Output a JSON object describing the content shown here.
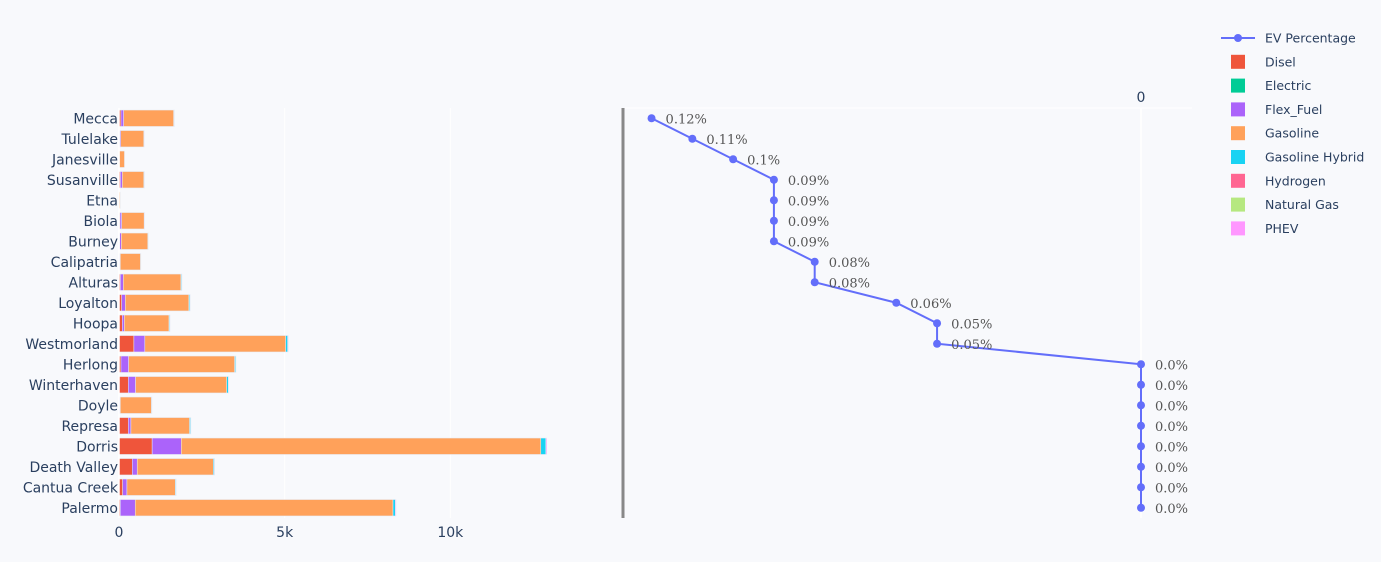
{
  "chart_data": [
    {
      "type": "bar",
      "orientation": "horizontal",
      "barmode": "stack",
      "categories": [
        "Mecca",
        "Tulelake",
        "Janesville",
        "Susanville",
        "Etna",
        "Biola",
        "Burney",
        "Calipatria",
        "Alturas",
        "Loyalton",
        "Hoopa",
        "Westmorland",
        "Herlong",
        "Winterhaven",
        "Doyle",
        "Represa",
        "Dorris",
        "Death Valley",
        "Cantua Creek",
        "Palermo"
      ],
      "series": [
        {
          "name": "Disel",
          "color": "#ef553b",
          "values": [
            60,
            20,
            10,
            40,
            5,
            30,
            20,
            20,
            40,
            80,
            100,
            450,
            60,
            280,
            20,
            280,
            1000,
            400,
            110,
            40
          ]
        },
        {
          "name": "Electric",
          "color": "#00cc96",
          "values": [
            0,
            0,
            0,
            0,
            0,
            0,
            0,
            0,
            0,
            0,
            0,
            0,
            0,
            0,
            0,
            0,
            0,
            0,
            0,
            0
          ]
        },
        {
          "name": "Flex_Fuel",
          "color": "#ab63fa",
          "values": [
            80,
            30,
            5,
            60,
            0,
            50,
            50,
            20,
            90,
            110,
            60,
            330,
            230,
            220,
            20,
            80,
            880,
            150,
            130,
            450
          ]
        },
        {
          "name": "Gasoline",
          "color": "#ffa15a",
          "values": [
            1510,
            700,
            150,
            650,
            30,
            680,
            800,
            610,
            1740,
            1920,
            1350,
            4250,
            3200,
            2750,
            940,
            1770,
            10850,
            2300,
            1460,
            7780
          ]
        },
        {
          "name": "Gasoline Hybrid",
          "color": "#19d3f3",
          "values": [
            15,
            5,
            0,
            10,
            0,
            5,
            10,
            5,
            20,
            25,
            20,
            60,
            30,
            50,
            10,
            30,
            150,
            30,
            20,
            70
          ]
        },
        {
          "name": "Hydrogen",
          "color": "#ff6692",
          "values": [
            0,
            0,
            0,
            0,
            0,
            0,
            0,
            0,
            0,
            0,
            0,
            0,
            0,
            0,
            0,
            0,
            0,
            0,
            0,
            0
          ]
        },
        {
          "name": "Natural Gas",
          "color": "#b6e880",
          "values": [
            0,
            0,
            0,
            0,
            0,
            0,
            0,
            0,
            0,
            0,
            0,
            0,
            0,
            0,
            0,
            0,
            0,
            0,
            0,
            0
          ]
        },
        {
          "name": "PHEV",
          "color": "#ff97ff",
          "values": [
            10,
            5,
            0,
            10,
            0,
            5,
            5,
            5,
            10,
            15,
            10,
            20,
            10,
            15,
            5,
            10,
            30,
            10,
            10,
            20
          ]
        }
      ],
      "xlim": [
        0,
        15000
      ],
      "xticks": [
        0,
        5000,
        10000
      ],
      "xticklabels": [
        "0",
        "5k",
        "10k"
      ]
    },
    {
      "type": "line",
      "name": "EV Percentage",
      "color": "#636efa",
      "categories": [
        "Mecca",
        "Tulelake",
        "Janesville",
        "Susanville",
        "Etna",
        "Biola",
        "Burney",
        "Calipatria",
        "Alturas",
        "Loyalton",
        "Hoopa",
        "Westmorland",
        "Herlong",
        "Winterhaven",
        "Doyle",
        "Represa",
        "Dorris",
        "Death Valley",
        "Cantua Creek",
        "Palermo"
      ],
      "values": [
        0.12,
        0.11,
        0.1,
        0.09,
        0.09,
        0.09,
        0.09,
        0.08,
        0.08,
        0.06,
        0.05,
        0.05,
        0.0,
        0.0,
        0.0,
        0.0,
        0.0,
        0.0,
        0.0,
        0.0
      ],
      "labels": [
        "0.12%",
        "0.11%",
        "0.1%",
        "0.09%",
        "0.09%",
        "0.09%",
        "0.09%",
        "0.08%",
        "0.08%",
        "0.06%",
        "0.05%",
        "0.05%",
        "0.0%",
        "0.0%",
        "0.0%",
        "0.0%",
        "0.0%",
        "0.0%",
        "0.0%",
        "0.0%"
      ],
      "xaxis": "reversed",
      "xlim": [
        0.127,
        0
      ],
      "xticks": [
        0
      ],
      "xticklabels": [
        "0"
      ],
      "xaxis_side": "top"
    }
  ],
  "legend": {
    "placement": "top-right",
    "items": [
      {
        "name": "EV Percentage",
        "symbol": "line-marker",
        "color": "#636efa"
      },
      {
        "name": "Disel",
        "symbol": "square",
        "color": "#ef553b"
      },
      {
        "name": "Electric",
        "symbol": "square",
        "color": "#00cc96"
      },
      {
        "name": "Flex_Fuel",
        "symbol": "square",
        "color": "#ab63fa"
      },
      {
        "name": "Gasoline",
        "symbol": "square",
        "color": "#ffa15a"
      },
      {
        "name": "Gasoline Hybrid",
        "symbol": "square",
        "color": "#19d3f3"
      },
      {
        "name": "Hydrogen",
        "symbol": "square",
        "color": "#ff6692"
      },
      {
        "name": "Natural Gas",
        "symbol": "square",
        "color": "#b6e880"
      },
      {
        "name": "PHEV",
        "symbol": "square",
        "color": "#ff97ff"
      }
    ]
  }
}
